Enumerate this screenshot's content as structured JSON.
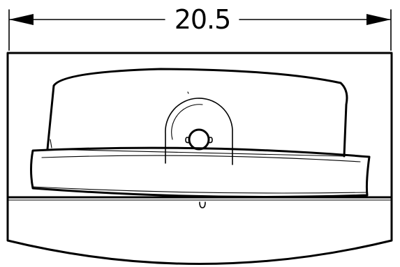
{
  "dimension": {
    "value": "20.5"
  },
  "colors": {
    "line": "#000000",
    "background": "#ffffff"
  }
}
